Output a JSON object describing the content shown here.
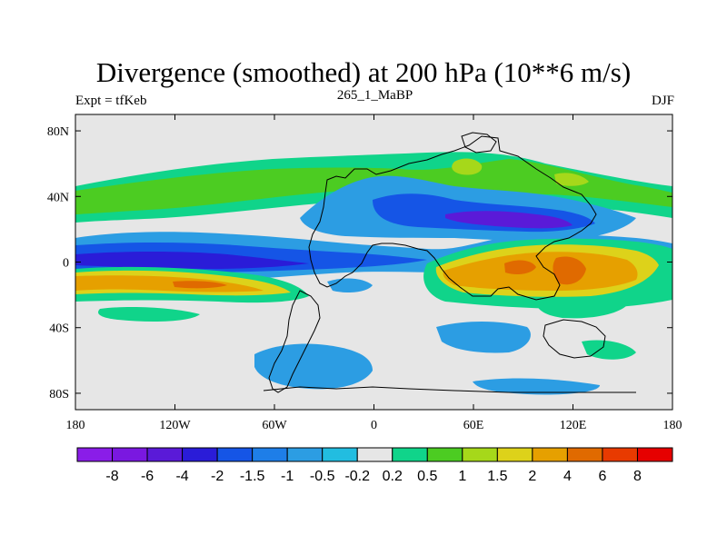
{
  "title": "Divergence (smoothed) at 200 hPa (10**6 m/s)",
  "left_label": "Expt = tfKeb",
  "center_label": "265_1_MaBP",
  "right_label": "DJF",
  "colors": {
    "land_outline": "#000000",
    "background": "#e6e6e6"
  },
  "chart_data": {
    "type": "heatmap",
    "title": "Divergence (smoothed) at 200 hPa (10**6 m/s)",
    "xlim": [
      -180,
      180
    ],
    "ylim": [
      -90,
      90
    ],
    "x_ticks": [
      {
        "value": -180,
        "label": "180"
      },
      {
        "value": -120,
        "label": "120W"
      },
      {
        "value": -60,
        "label": "60W"
      },
      {
        "value": 0,
        "label": "0"
      },
      {
        "value": 60,
        "label": "60E"
      },
      {
        "value": 120,
        "label": "120E"
      },
      {
        "value": 180,
        "label": "180"
      }
    ],
    "y_ticks": [
      {
        "value": 80,
        "label": "80N"
      },
      {
        "value": 40,
        "label": "40N"
      },
      {
        "value": 0,
        "label": "0"
      },
      {
        "value": -40,
        "label": "40S"
      },
      {
        "value": -80,
        "label": "80S"
      }
    ],
    "colorbar": {
      "levels": [
        "-8",
        "-6",
        "-4",
        "-2",
        "-1.5",
        "-1",
        "-0.5",
        "-0.2",
        "0.2",
        "0.5",
        "1",
        "1.5",
        "2",
        "4",
        "6",
        "8"
      ],
      "colors": [
        "#8a1de8",
        "#7a18e0",
        "#5a1ad8",
        "#2a1cd8",
        "#1555e6",
        "#1e7ee8",
        "#2c9de3",
        "#22bde0",
        "#e6e6e6",
        "#10d48a",
        "#4ccc22",
        "#a6d81a",
        "#ddd21a",
        "#e6a000",
        "#e06a00",
        "#e83a00",
        "#e60000"
      ]
    },
    "bands": [
      {
        "lat": [
          72,
          90
        ],
        "value": 0,
        "class": "neutral"
      },
      {
        "lat": [
          32,
          58
        ],
        "value": 1.0,
        "class": "convergence-green"
      },
      {
        "lat": [
          14,
          30
        ],
        "value": -1.0,
        "class": "light-blue"
      },
      {
        "lat": [
          -8,
          12
        ],
        "value": -2.5,
        "class": "tropical-blue"
      },
      {
        "lat": [
          -28,
          -10
        ],
        "value": 3.0,
        "class": "subtropical-orange"
      },
      {
        "lat": [
          -40,
          -32
        ],
        "value": 0.6,
        "class": "southern-green"
      }
    ]
  }
}
